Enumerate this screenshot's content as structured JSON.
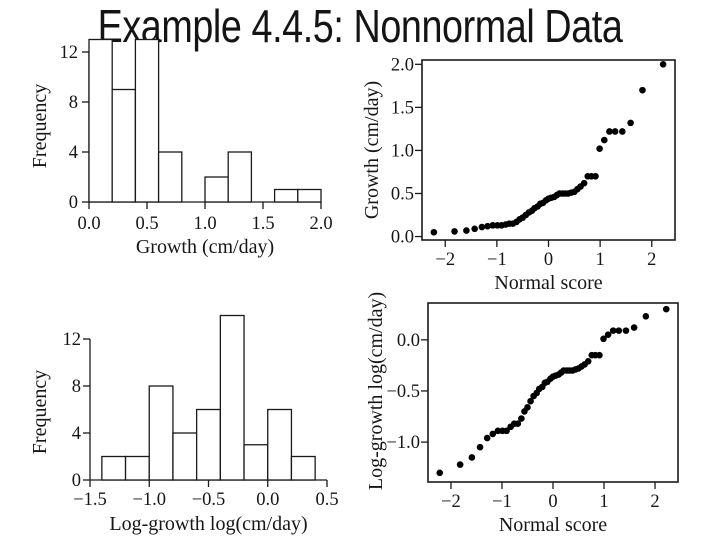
{
  "title": "Example 4.4.5: Nonnormal Data",
  "colors": {
    "ink": "#161616",
    "plot_stroke": "#1a1a1a",
    "point_fill": "#000000",
    "background": "#ffffff"
  },
  "chart_data": [
    {
      "id": "hist-growth",
      "type": "bar",
      "subtype": "histogram",
      "xlabel": "Growth (cm/day)",
      "ylabel": "Frequency",
      "bin_start": 0.0,
      "bin_width": 0.2,
      "counts": [
        13,
        9,
        13,
        4,
        0,
        2,
        4,
        0,
        1,
        1
      ],
      "xlim": [
        0.0,
        2.0
      ],
      "ylim": [
        0,
        13
      ],
      "xticks": [
        0.0,
        0.5,
        1.0,
        1.5,
        2.0
      ],
      "xtick_labels": [
        "0.0",
        "0.5",
        "1.0",
        "1.5",
        "2.0"
      ],
      "yticks": [
        0,
        4,
        8,
        12
      ],
      "ytick_labels": [
        "0",
        "4",
        "8",
        "12"
      ],
      "grid": false
    },
    {
      "id": "qq-growth",
      "type": "scatter",
      "xlabel": "Normal score",
      "ylabel": "Growth (cm/day)",
      "x": [
        -2.22,
        -1.82,
        -1.59,
        -1.43,
        -1.29,
        -1.18,
        -1.08,
        -0.99,
        -0.91,
        -0.83,
        -0.76,
        -0.69,
        -0.62,
        -0.56,
        -0.5,
        -0.44,
        -0.38,
        -0.32,
        -0.27,
        -0.21,
        -0.16,
        -0.11,
        -0.05,
        0,
        0.05,
        0.11,
        0.16,
        0.21,
        0.27,
        0.32,
        0.38,
        0.44,
        0.5,
        0.56,
        0.62,
        0.69,
        0.76,
        0.83,
        0.91,
        0.99,
        1.08,
        1.18,
        1.29,
        1.43,
        1.59,
        1.82,
        2.22
      ],
      "y": [
        0.05,
        0.06,
        0.07,
        0.09,
        0.11,
        0.12,
        0.13,
        0.13,
        0.13,
        0.14,
        0.15,
        0.15,
        0.17,
        0.2,
        0.22,
        0.25,
        0.28,
        0.3,
        0.33,
        0.35,
        0.38,
        0.39,
        0.42,
        0.44,
        0.45,
        0.46,
        0.48,
        0.5,
        0.5,
        0.5,
        0.5,
        0.51,
        0.52,
        0.55,
        0.58,
        0.62,
        0.7,
        0.7,
        0.7,
        1.02,
        1.12,
        1.22,
        1.22,
        1.22,
        1.32,
        1.7,
        2.0
      ],
      "xlim": [
        -2.45,
        2.45
      ],
      "ylim": [
        -0.04,
        2.05
      ],
      "xticks": [
        -2,
        -1,
        0,
        1,
        2
      ],
      "xtick_labels": [
        "−2",
        "−1",
        "0",
        "1",
        "2"
      ],
      "yticks": [
        0.0,
        0.5,
        1.0,
        1.5,
        2.0
      ],
      "ytick_labels": [
        "0.0",
        "0.5",
        "1.0",
        "1.5",
        "2.0"
      ],
      "grid": false
    },
    {
      "id": "hist-log-growth",
      "type": "bar",
      "subtype": "histogram",
      "xlabel": "Log-growth log(cm/day)",
      "ylabel": "Frequency",
      "bin_start": -1.4,
      "bin_width": 0.2,
      "counts": [
        2,
        2,
        8,
        4,
        6,
        14,
        3,
        6,
        2
      ],
      "xlim": [
        -1.5,
        0.5
      ],
      "ylim": [
        0,
        14
      ],
      "xticks": [
        -1.5,
        -1.0,
        -0.5,
        0.0,
        0.5
      ],
      "xtick_labels": [
        "−1.5",
        "−1.0",
        "−0.5",
        "0.0",
        "0.5"
      ],
      "yticks": [
        0,
        4,
        8,
        12
      ],
      "ytick_labels": [
        "0",
        "4",
        "8",
        "12"
      ],
      "grid": false
    },
    {
      "id": "qq-log-growth",
      "type": "scatter",
      "xlabel": "Normal score",
      "ylabel": "Log-growth log(cm/day)",
      "x": [
        -2.22,
        -1.82,
        -1.59,
        -1.43,
        -1.29,
        -1.18,
        -1.08,
        -0.99,
        -0.91,
        -0.83,
        -0.76,
        -0.69,
        -0.62,
        -0.56,
        -0.5,
        -0.44,
        -0.38,
        -0.32,
        -0.27,
        -0.21,
        -0.16,
        -0.11,
        -0.05,
        0,
        0.05,
        0.11,
        0.16,
        0.21,
        0.27,
        0.32,
        0.38,
        0.44,
        0.5,
        0.56,
        0.62,
        0.69,
        0.76,
        0.83,
        0.91,
        0.99,
        1.08,
        1.18,
        1.29,
        1.43,
        1.59,
        1.82,
        2.22
      ],
      "y": [
        -1.3,
        -1.22,
        -1.15,
        -1.05,
        -0.96,
        -0.92,
        -0.89,
        -0.89,
        -0.89,
        -0.85,
        -0.82,
        -0.82,
        -0.77,
        -0.7,
        -0.66,
        -0.6,
        -0.55,
        -0.52,
        -0.48,
        -0.46,
        -0.42,
        -0.41,
        -0.38,
        -0.36,
        -0.35,
        -0.34,
        -0.32,
        -0.3,
        -0.3,
        -0.3,
        -0.3,
        -0.29,
        -0.28,
        -0.26,
        -0.24,
        -0.21,
        -0.15,
        -0.15,
        -0.15,
        0.01,
        0.05,
        0.09,
        0.09,
        0.09,
        0.12,
        0.23,
        0.3
      ],
      "xlim": [
        -2.45,
        2.45
      ],
      "ylim": [
        -1.39,
        0.36
      ],
      "xticks": [
        -2,
        -1,
        0,
        1,
        2
      ],
      "xtick_labels": [
        "−2",
        "−1",
        "0",
        "1",
        "2"
      ],
      "yticks": [
        0.0,
        -0.5,
        -1.0
      ],
      "ytick_labels": [
        "0.0",
        "−0.5",
        "−1.0"
      ],
      "grid": false
    }
  ]
}
